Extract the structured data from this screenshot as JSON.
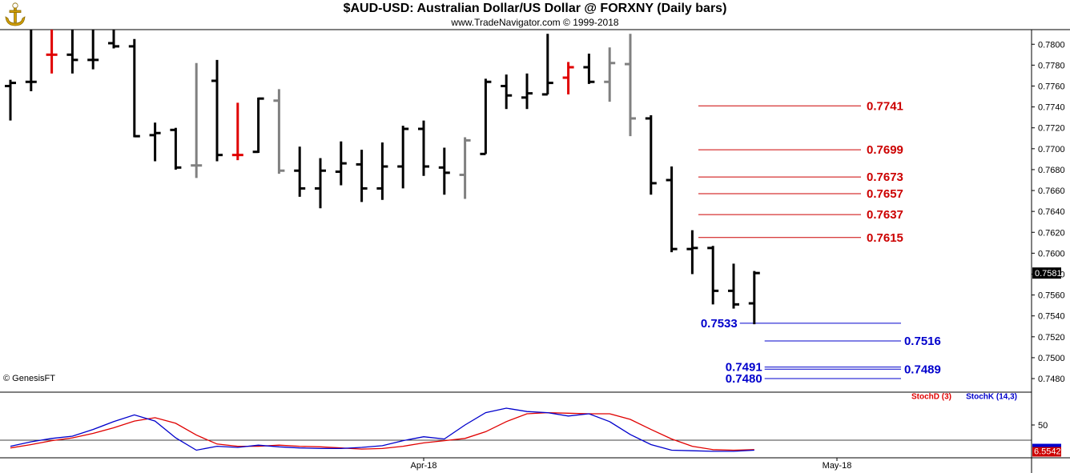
{
  "header": {
    "title": "$AUD-USD:  Australian Dollar/US Dollar @ FORXNY  (Daily bars)",
    "subtitle": "www.TradeNavigator.com © 1999-2018",
    "copyright": "© GenesisFT"
  },
  "colors": {
    "up": "#000000",
    "down_red": "#e00000",
    "gray": "#808080",
    "resistance": "#cc0000",
    "support": "#0000cc",
    "stoch_d": "#e00000",
    "stoch_k": "#0000cc"
  },
  "chart_data": [
    {
      "type": "ohlc",
      "ylim": [
        0.7467,
        0.7814
      ],
      "y_ticks": [
        "0.7800",
        "0.7780",
        "0.7760",
        "0.7740",
        "0.7720",
        "0.7700",
        "0.7680",
        "0.7660",
        "0.7640",
        "0.7620",
        "0.7600",
        "0.7580",
        "0.7560",
        "0.7540",
        "0.7520",
        "0.7500",
        "0.7480"
      ],
      "last_price_label": "0.7581",
      "bars": [
        {
          "h": 0.7766,
          "l": 0.7727,
          "o": 0.776,
          "c": 0.7763,
          "color": "black"
        },
        {
          "h": 0.782,
          "l": 0.7755,
          "o": 0.7764,
          "c": 0.7764,
          "color": "black"
        },
        {
          "h": 0.782,
          "l": 0.7772,
          "o": 0.779,
          "c": 0.779,
          "color": "red"
        },
        {
          "h": 0.782,
          "l": 0.7772,
          "o": 0.779,
          "c": 0.7785,
          "color": "black"
        },
        {
          "h": 0.782,
          "l": 0.7776,
          "o": 0.7785,
          "c": 0.7785,
          "color": "black"
        },
        {
          "h": 0.782,
          "l": 0.7796,
          "o": 0.7801,
          "c": 0.7798,
          "color": "black"
        },
        {
          "h": 0.7805,
          "l": 0.7711,
          "o": 0.7798,
          "c": 0.7712,
          "color": "black"
        },
        {
          "h": 0.7725,
          "l": 0.7688,
          "o": 0.7713,
          "c": 0.7715,
          "color": "black"
        },
        {
          "h": 0.772,
          "l": 0.768,
          "o": 0.7718,
          "c": 0.7682,
          "color": "black"
        },
        {
          "h": 0.7782,
          "l": 0.7672,
          "o": 0.7684,
          "c": 0.7684,
          "color": "gray"
        },
        {
          "h": 0.7785,
          "l": 0.7688,
          "o": 0.7765,
          "c": 0.7694,
          "color": "black"
        },
        {
          "h": 0.7744,
          "l": 0.7689,
          "o": 0.7694,
          "c": 0.7694,
          "color": "red"
        },
        {
          "h": 0.7749,
          "l": 0.7696,
          "o": 0.7697,
          "c": 0.7748,
          "color": "black"
        },
        {
          "h": 0.7757,
          "l": 0.7676,
          "o": 0.7746,
          "c": 0.7679,
          "color": "gray"
        },
        {
          "h": 0.7702,
          "l": 0.7654,
          "o": 0.7679,
          "c": 0.7662,
          "color": "black"
        },
        {
          "h": 0.7691,
          "l": 0.7643,
          "o": 0.7662,
          "c": 0.7679,
          "color": "black"
        },
        {
          "h": 0.7707,
          "l": 0.7665,
          "o": 0.7678,
          "c": 0.7686,
          "color": "black"
        },
        {
          "h": 0.7699,
          "l": 0.7649,
          "o": 0.7685,
          "c": 0.7662,
          "color": "black"
        },
        {
          "h": 0.7706,
          "l": 0.7651,
          "o": 0.7662,
          "c": 0.7683,
          "color": "black"
        },
        {
          "h": 0.7722,
          "l": 0.7662,
          "o": 0.7683,
          "c": 0.7719,
          "color": "black"
        },
        {
          "h": 0.7727,
          "l": 0.7674,
          "o": 0.7719,
          "c": 0.7683,
          "color": "black"
        },
        {
          "h": 0.7701,
          "l": 0.7656,
          "o": 0.7682,
          "c": 0.7677,
          "color": "black"
        },
        {
          "h": 0.7711,
          "l": 0.7652,
          "o": 0.7675,
          "c": 0.7708,
          "color": "gray"
        },
        {
          "h": 0.7767,
          "l": 0.7695,
          "o": 0.7695,
          "c": 0.7764,
          "color": "black"
        },
        {
          "h": 0.7771,
          "l": 0.7738,
          "o": 0.776,
          "c": 0.7751,
          "color": "black"
        },
        {
          "h": 0.7772,
          "l": 0.7738,
          "o": 0.7749,
          "c": 0.7753,
          "color": "black"
        },
        {
          "h": 0.781,
          "l": 0.7752,
          "o": 0.7752,
          "c": 0.7763,
          "color": "black"
        },
        {
          "h": 0.7783,
          "l": 0.7752,
          "o": 0.7768,
          "c": 0.7778,
          "color": "red"
        },
        {
          "h": 0.7791,
          "l": 0.7762,
          "o": 0.7778,
          "c": 0.7764,
          "color": "black"
        },
        {
          "h": 0.7797,
          "l": 0.7745,
          "o": 0.7764,
          "c": 0.7782,
          "color": "gray"
        },
        {
          "h": 0.781,
          "l": 0.7712,
          "o": 0.7781,
          "c": 0.7729,
          "color": "gray"
        },
        {
          "h": 0.7732,
          "l": 0.7656,
          "o": 0.7729,
          "c": 0.7667,
          "color": "black"
        },
        {
          "h": 0.7683,
          "l": 0.7601,
          "o": 0.767,
          "c": 0.7604,
          "color": "black"
        },
        {
          "h": 0.7622,
          "l": 0.758,
          "o": 0.7604,
          "c": 0.7605,
          "color": "black"
        },
        {
          "h": 0.7607,
          "l": 0.7551,
          "o": 0.7605,
          "c": 0.7564,
          "color": "black"
        },
        {
          "h": 0.759,
          "l": 0.7547,
          "o": 0.7564,
          "c": 0.7551,
          "color": "black"
        },
        {
          "h": 0.7583,
          "l": 0.7532,
          "o": 0.7552,
          "c": 0.7581,
          "color": "black"
        }
      ],
      "resistance_levels": [
        {
          "value": 0.7741,
          "label": "0.7741"
        },
        {
          "value": 0.7699,
          "label": "0.7699"
        },
        {
          "value": 0.7673,
          "label": "0.7673"
        },
        {
          "value": 0.7657,
          "label": "0.7657"
        },
        {
          "value": 0.7637,
          "label": "0.7637"
        },
        {
          "value": 0.7615,
          "label": "0.7615"
        }
      ],
      "support_levels": [
        {
          "value": 0.7533,
          "label": "0.7533",
          "side": "left",
          "from_bar": 35.3,
          "to_bar": 43.1
        },
        {
          "value": 0.7516,
          "label": "0.7516",
          "side": "right",
          "from_bar": 36.5,
          "to_bar": 43.1
        },
        {
          "value": 0.7491,
          "label": "0.7491",
          "side": "left",
          "from_bar": 36.5,
          "to_bar": 43.1
        },
        {
          "value": 0.7489,
          "label": "0.7489",
          "side": "right",
          "from_bar": 36.5,
          "to_bar": 43.1
        },
        {
          "value": 0.748,
          "label": "0.7480",
          "side": "left",
          "from_bar": 36.5,
          "to_bar": 43.1
        }
      ]
    },
    {
      "type": "line",
      "ylim": [
        0,
        100
      ],
      "y_ticks": [
        "50"
      ],
      "last_value_label": "6.5542",
      "series": [
        {
          "name": "StochD (3)",
          "values": [
            9,
            15,
            22,
            27,
            35,
            45,
            57,
            63,
            53,
            32,
            16,
            12,
            12,
            14,
            12,
            11,
            9,
            7,
            8,
            12,
            18,
            22,
            26,
            38,
            56,
            70,
            72,
            71,
            70,
            70,
            60,
            42,
            25,
            12,
            6,
            5,
            6
          ]
        },
        {
          "name": "StochK (14,3)",
          "values": [
            12,
            20,
            26,
            30,
            42,
            56,
            68,
            57,
            27,
            5,
            12,
            10,
            14,
            11,
            9,
            8,
            8,
            10,
            13,
            22,
            29,
            25,
            50,
            72,
            80,
            74,
            72,
            66,
            70,
            56,
            33,
            15,
            5,
            4,
            3,
            3,
            5
          ]
        }
      ],
      "x_labels": [
        {
          "label": "Apr-18",
          "bar": 20
        },
        {
          "label": "May-18",
          "bar": 40
        }
      ]
    }
  ]
}
